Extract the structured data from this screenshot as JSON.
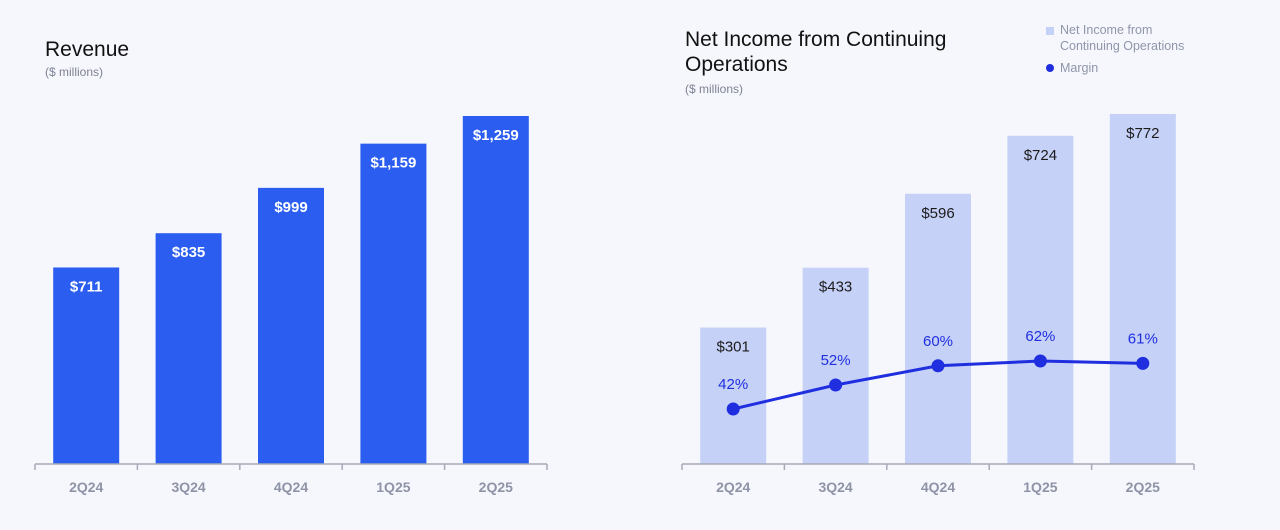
{
  "colors": {
    "revenue_bar": "#2b5ef0",
    "net_income_bar": "#c6d1f7",
    "margin_line": "#1f2fe0",
    "axis": "#a6aab6",
    "tick_label": "#8e93a6"
  },
  "chart_data": [
    {
      "type": "bar",
      "title": "Revenue",
      "subtitle": "($ millions)",
      "categories": [
        "2Q24",
        "3Q24",
        "4Q24",
        "1Q25",
        "2Q25"
      ],
      "values": [
        711,
        835,
        999,
        1159,
        1259
      ],
      "data_labels": [
        "$711",
        "$835",
        "$999",
        "$1,159",
        "$1,259"
      ],
      "ylim": [
        0,
        1500
      ],
      "grid": false
    },
    {
      "type": "bar",
      "title": "Net Income from Continuing Operations",
      "subtitle": "($ millions)",
      "categories": [
        "2Q24",
        "3Q24",
        "4Q24",
        "1Q25",
        "2Q25"
      ],
      "series": [
        {
          "name": "Net Income from Continuing Operations",
          "type": "bar",
          "values": [
            301,
            433,
            596,
            724,
            772
          ],
          "data_labels": [
            "$301",
            "$433",
            "$596",
            "$724",
            "$772"
          ]
        },
        {
          "name": "Margin",
          "type": "line",
          "values": [
            42,
            52,
            60,
            62,
            61
          ],
          "data_labels": [
            "42%",
            "52%",
            "60%",
            "62%",
            "61%"
          ]
        }
      ],
      "ylim": [
        0,
        900
      ],
      "margin_ylim": [
        0,
        100
      ],
      "legend": "top-right",
      "grid": false
    }
  ]
}
